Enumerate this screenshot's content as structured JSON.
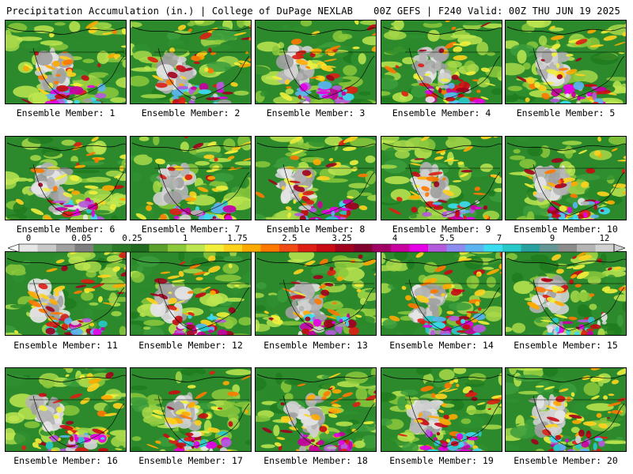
{
  "header": {
    "title": "Precipitation Accumulation (in.) | College of DuPage NEXLAB",
    "run_info": "00Z GEFS | F240 Valid: 00Z THU JUN 19 2025"
  },
  "colorbar": {
    "labels": [
      "0",
      "0.05",
      "0.25",
      "1",
      "1.75",
      "2.5",
      "3.25",
      "4",
      "5.5",
      "7",
      "9",
      "12"
    ],
    "colors": [
      "#e6e6e6",
      "#c8c8c8",
      "#a0a0a0",
      "#7d7d7d",
      "#3c8c3c",
      "#2a7a2a",
      "#1f6a1f",
      "#5aa02a",
      "#8cc83c",
      "#bee650",
      "#f0f03c",
      "#ffd21e",
      "#ffaa00",
      "#ff7800",
      "#f04b14",
      "#dc1e14",
      "#c80a14",
      "#a0001e",
      "#82002d",
      "#a00064",
      "#c800a0",
      "#e600e6",
      "#b45adc",
      "#8c8cf0",
      "#5ab4f0",
      "#3cdcf0",
      "#28c8c8",
      "#28a0a0",
      "#649696",
      "#8c8c8c",
      "#b4b4b4",
      "#d2d2d2"
    ]
  },
  "members": [
    {
      "label": "Ensemble Member: 1"
    },
    {
      "label": "Ensemble Member: 2"
    },
    {
      "label": "Ensemble Member: 3"
    },
    {
      "label": "Ensemble Member: 4"
    },
    {
      "label": "Ensemble Member: 5"
    },
    {
      "label": "Ensemble Member: 6"
    },
    {
      "label": "Ensemble Member: 7"
    },
    {
      "label": "Ensemble Member: 8"
    },
    {
      "label": "Ensemble Member: 9"
    },
    {
      "label": "Ensemble Member: 10"
    },
    {
      "label": "Ensemble Member: 11"
    },
    {
      "label": "Ensemble Member: 12"
    },
    {
      "label": "Ensemble Member: 13"
    },
    {
      "label": "Ensemble Member: 14"
    },
    {
      "label": "Ensemble Member: 15"
    },
    {
      "label": "Ensemble Member: 16"
    },
    {
      "label": "Ensemble Member: 17"
    },
    {
      "label": "Ensemble Member: 18"
    },
    {
      "label": "Ensemble Member: 19"
    },
    {
      "label": "Ensemble Member: 20"
    }
  ]
}
